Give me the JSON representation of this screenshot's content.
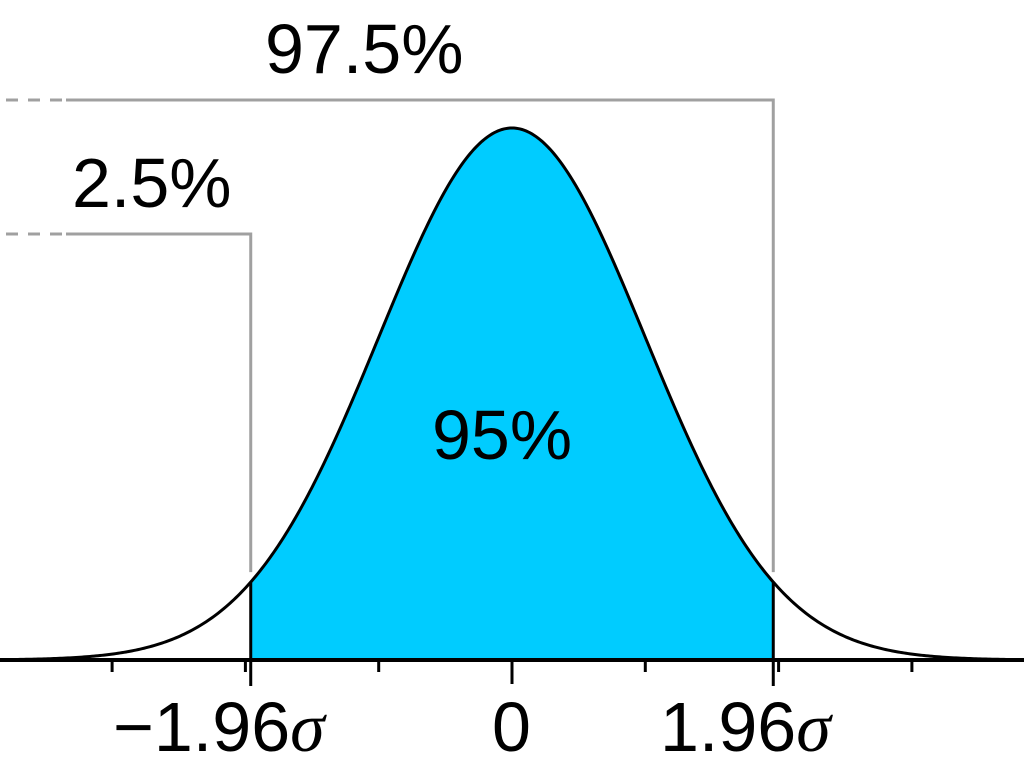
{
  "chart_data": {
    "type": "area",
    "title": "",
    "description": "Standard normal distribution with central 95% shaded between -1.96 sigma and 1.96 sigma",
    "xlabel": "",
    "ylabel": "",
    "x_ticks": [
      -3,
      -2,
      -1,
      0,
      1,
      2,
      3
    ],
    "tick_labels": [
      {
        "x": -1.96,
        "text": "−1.96",
        "suffix": "σ"
      },
      {
        "x": 0,
        "text": "0",
        "suffix": ""
      },
      {
        "x": 1.96,
        "text": "1.96",
        "suffix": "σ"
      }
    ],
    "shaded_region": {
      "from": -1.96,
      "to": 1.96,
      "area_label": "95%",
      "color": "#00ccff"
    },
    "annotations": [
      {
        "text": "97.5%",
        "bracket_x": 1.96,
        "meaning": "cumulative probability below 1.96 sigma"
      },
      {
        "text": "2.5%",
        "bracket_x": -1.96,
        "meaning": "cumulative probability below -1.96 sigma"
      },
      {
        "text": "95%",
        "meaning": "area between -1.96 sigma and 1.96 sigma"
      }
    ],
    "curve_color": "#000000",
    "bracket_color": "#a0a0a0",
    "grid": false,
    "legend": null
  },
  "labels": {
    "pct_upper": "97.5%",
    "pct_lower": "2.5%",
    "pct_center": "95%",
    "tick_neg": "−1.96",
    "tick_zero": "0",
    "tick_pos": "1.96",
    "sigma": "σ"
  },
  "colors": {
    "fill": "#00ccff",
    "curve": "#000000",
    "bracket": "#a0a0a0"
  }
}
